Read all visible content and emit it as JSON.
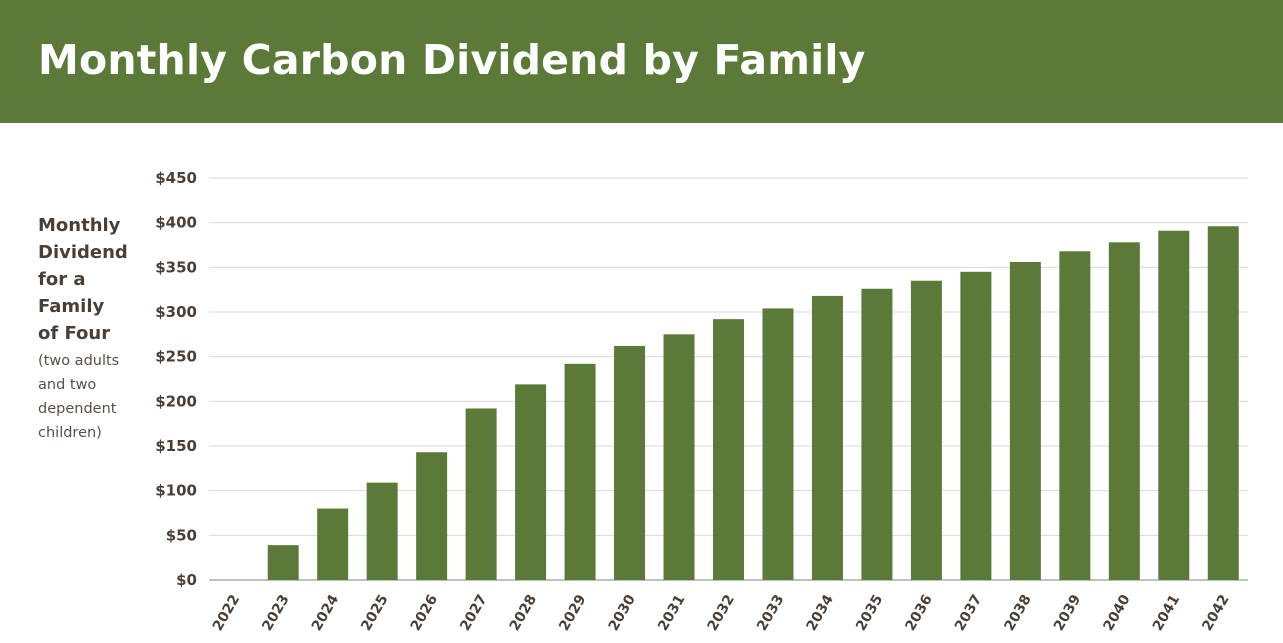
{
  "header": {
    "title": "Monthly Carbon Dividend by Family"
  },
  "colors": {
    "banner": "#5b7a38",
    "bar": "#5b7a38",
    "grid": "#d9d9d9",
    "text": "#4a3f37"
  },
  "chart_data": {
    "type": "bar",
    "title": "Monthly Carbon Dividend by Family",
    "ylabel_lines": [
      "Monthly",
      "Dividend",
      "for a",
      "Family",
      "of Four"
    ],
    "ylabel_note_lines": [
      "(two adults",
      "and two",
      "dependent",
      "children)"
    ],
    "xlabel": "",
    "categories": [
      "2022",
      "2023",
      "2024",
      "2025",
      "2026",
      "2027",
      "2028",
      "2029",
      "2030",
      "2031",
      "2032",
      "2033",
      "2034",
      "2035",
      "2036",
      "2037",
      "2038",
      "2039",
      "2040",
      "2041",
      "2042"
    ],
    "values": [
      0,
      39,
      80,
      109,
      143,
      192,
      219,
      242,
      262,
      275,
      292,
      304,
      318,
      326,
      335,
      345,
      356,
      368,
      378,
      391,
      396
    ],
    "ylim": [
      0,
      450
    ],
    "yticks": [
      0,
      50,
      100,
      150,
      200,
      250,
      300,
      350,
      400,
      450
    ],
    "ytick_labels": [
      "$0",
      "$50",
      "$100",
      "$150",
      "$200",
      "$250",
      "$300",
      "$350",
      "$400",
      "$450"
    ],
    "grid": true,
    "legend": "none"
  }
}
